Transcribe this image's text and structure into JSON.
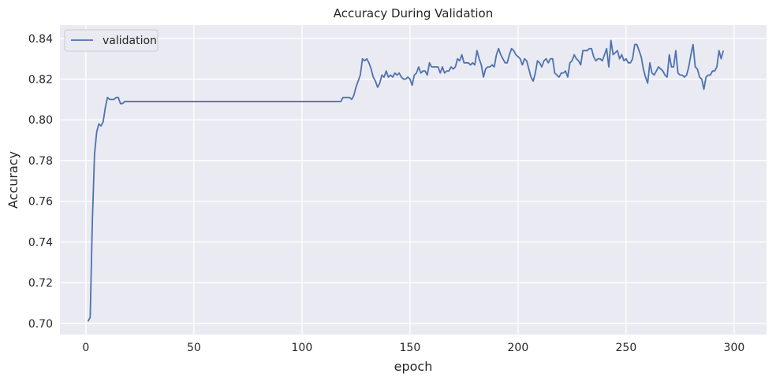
{
  "chart_data": {
    "type": "line",
    "title": "Accuracy During Validation",
    "xlabel": "epoch",
    "ylabel": "Accuracy",
    "xlim": [
      -12,
      315
    ],
    "ylim": [
      0.6945,
      0.8465
    ],
    "xticks": [
      0,
      50,
      100,
      150,
      200,
      250,
      300
    ],
    "yticks": [
      0.7,
      0.72,
      0.74,
      0.76,
      0.78,
      0.8,
      0.82,
      0.84
    ],
    "grid": true,
    "legend_position": "top-left",
    "background_color": "#eaeaf2",
    "grid_color": "#ffffff",
    "series": [
      {
        "name": "validation",
        "color": "#4c72b0",
        "points": [
          [
            1,
            0.701
          ],
          [
            2,
            0.703
          ],
          [
            3,
            0.75
          ],
          [
            4,
            0.783
          ],
          [
            5,
            0.794
          ],
          [
            6,
            0.798
          ],
          [
            7,
            0.797
          ],
          [
            8,
            0.799
          ],
          [
            9,
            0.806
          ],
          [
            10,
            0.811
          ],
          [
            11,
            0.81
          ],
          [
            12,
            0.81
          ],
          [
            13,
            0.81
          ],
          [
            14,
            0.811
          ],
          [
            15,
            0.811
          ],
          [
            16,
            0.808
          ],
          [
            17,
            0.808
          ],
          [
            18,
            0.809
          ],
          [
            20,
            0.809
          ],
          [
            40,
            0.809
          ],
          [
            60,
            0.809
          ],
          [
            80,
            0.809
          ],
          [
            100,
            0.809
          ],
          [
            110,
            0.809
          ],
          [
            118,
            0.809
          ],
          [
            119,
            0.811
          ],
          [
            120,
            0.811
          ],
          [
            122,
            0.811
          ],
          [
            123,
            0.81
          ],
          [
            124,
            0.812
          ],
          [
            125,
            0.816
          ],
          [
            126,
            0.819
          ],
          [
            127,
            0.822
          ],
          [
            128,
            0.83
          ],
          [
            129,
            0.829
          ],
          [
            130,
            0.83
          ],
          [
            131,
            0.828
          ],
          [
            132,
            0.825
          ],
          [
            133,
            0.821
          ],
          [
            134,
            0.819
          ],
          [
            135,
            0.816
          ],
          [
            136,
            0.818
          ],
          [
            137,
            0.822
          ],
          [
            138,
            0.821
          ],
          [
            139,
            0.824
          ],
          [
            140,
            0.821
          ],
          [
            141,
            0.822
          ],
          [
            142,
            0.821
          ],
          [
            143,
            0.823
          ],
          [
            144,
            0.822
          ],
          [
            145,
            0.823
          ],
          [
            146,
            0.821
          ],
          [
            147,
            0.82
          ],
          [
            148,
            0.82
          ],
          [
            149,
            0.821
          ],
          [
            150,
            0.82
          ],
          [
            151,
            0.817
          ],
          [
            152,
            0.822
          ],
          [
            153,
            0.823
          ],
          [
            154,
            0.826
          ],
          [
            155,
            0.823
          ],
          [
            156,
            0.824
          ],
          [
            157,
            0.824
          ],
          [
            158,
            0.822
          ],
          [
            159,
            0.828
          ],
          [
            160,
            0.826
          ],
          [
            161,
            0.826
          ],
          [
            162,
            0.826
          ],
          [
            163,
            0.826
          ],
          [
            164,
            0.823
          ],
          [
            165,
            0.826
          ],
          [
            166,
            0.823
          ],
          [
            167,
            0.824
          ],
          [
            168,
            0.824
          ],
          [
            169,
            0.826
          ],
          [
            170,
            0.825
          ],
          [
            171,
            0.826
          ],
          [
            172,
            0.83
          ],
          [
            173,
            0.829
          ],
          [
            174,
            0.832
          ],
          [
            175,
            0.828
          ],
          [
            176,
            0.828
          ],
          [
            177,
            0.828
          ],
          [
            178,
            0.827
          ],
          [
            179,
            0.828
          ],
          [
            180,
            0.827
          ],
          [
            181,
            0.834
          ],
          [
            182,
            0.83
          ],
          [
            183,
            0.827
          ],
          [
            184,
            0.821
          ],
          [
            185,
            0.825
          ],
          [
            186,
            0.826
          ],
          [
            187,
            0.826
          ],
          [
            188,
            0.827
          ],
          [
            189,
            0.826
          ],
          [
            190,
            0.832
          ],
          [
            191,
            0.835
          ],
          [
            192,
            0.832
          ],
          [
            193,
            0.83
          ],
          [
            194,
            0.828
          ],
          [
            195,
            0.828
          ],
          [
            196,
            0.832
          ],
          [
            197,
            0.835
          ],
          [
            198,
            0.834
          ],
          [
            199,
            0.832
          ],
          [
            200,
            0.831
          ],
          [
            201,
            0.83
          ],
          [
            202,
            0.827
          ],
          [
            203,
            0.83
          ],
          [
            204,
            0.829
          ],
          [
            205,
            0.825
          ],
          [
            206,
            0.821
          ],
          [
            207,
            0.819
          ],
          [
            208,
            0.823
          ],
          [
            209,
            0.829
          ],
          [
            210,
            0.828
          ],
          [
            211,
            0.826
          ],
          [
            212,
            0.829
          ],
          [
            213,
            0.83
          ],
          [
            214,
            0.828
          ],
          [
            215,
            0.83
          ],
          [
            216,
            0.83
          ],
          [
            217,
            0.823
          ],
          [
            218,
            0.822
          ],
          [
            219,
            0.821
          ],
          [
            220,
            0.823
          ],
          [
            221,
            0.823
          ],
          [
            222,
            0.824
          ],
          [
            223,
            0.821
          ],
          [
            224,
            0.828
          ],
          [
            225,
            0.829
          ],
          [
            226,
            0.832
          ],
          [
            227,
            0.83
          ],
          [
            228,
            0.829
          ],
          [
            229,
            0.827
          ],
          [
            230,
            0.834
          ],
          [
            231,
            0.834
          ],
          [
            232,
            0.834
          ],
          [
            233,
            0.835
          ],
          [
            234,
            0.835
          ],
          [
            235,
            0.831
          ],
          [
            236,
            0.829
          ],
          [
            237,
            0.83
          ],
          [
            238,
            0.83
          ],
          [
            239,
            0.829
          ],
          [
            240,
            0.832
          ],
          [
            241,
            0.835
          ],
          [
            242,
            0.826
          ],
          [
            243,
            0.839
          ],
          [
            244,
            0.832
          ],
          [
            245,
            0.833
          ],
          [
            246,
            0.834
          ],
          [
            247,
            0.83
          ],
          [
            248,
            0.832
          ],
          [
            249,
            0.829
          ],
          [
            250,
            0.83
          ],
          [
            251,
            0.828
          ],
          [
            252,
            0.828
          ],
          [
            253,
            0.83
          ],
          [
            254,
            0.837
          ],
          [
            255,
            0.837
          ],
          [
            256,
            0.834
          ],
          [
            257,
            0.831
          ],
          [
            258,
            0.825
          ],
          [
            259,
            0.821
          ],
          [
            260,
            0.818
          ],
          [
            261,
            0.828
          ],
          [
            262,
            0.823
          ],
          [
            263,
            0.822
          ],
          [
            264,
            0.824
          ],
          [
            265,
            0.826
          ],
          [
            266,
            0.825
          ],
          [
            267,
            0.824
          ],
          [
            268,
            0.822
          ],
          [
            269,
            0.821
          ],
          [
            270,
            0.832
          ],
          [
            271,
            0.826
          ],
          [
            272,
            0.826
          ],
          [
            273,
            0.834
          ],
          [
            274,
            0.823
          ],
          [
            275,
            0.822
          ],
          [
            276,
            0.822
          ],
          [
            277,
            0.821
          ],
          [
            278,
            0.822
          ],
          [
            279,
            0.826
          ],
          [
            280,
            0.832
          ],
          [
            281,
            0.837
          ],
          [
            282,
            0.826
          ],
          [
            283,
            0.825
          ],
          [
            284,
            0.821
          ],
          [
            285,
            0.82
          ],
          [
            286,
            0.815
          ],
          [
            287,
            0.821
          ],
          [
            288,
            0.822
          ],
          [
            289,
            0.822
          ],
          [
            290,
            0.824
          ],
          [
            291,
            0.824
          ],
          [
            292,
            0.826
          ],
          [
            293,
            0.834
          ],
          [
            294,
            0.83
          ],
          [
            295,
            0.834
          ]
        ]
      }
    ]
  }
}
